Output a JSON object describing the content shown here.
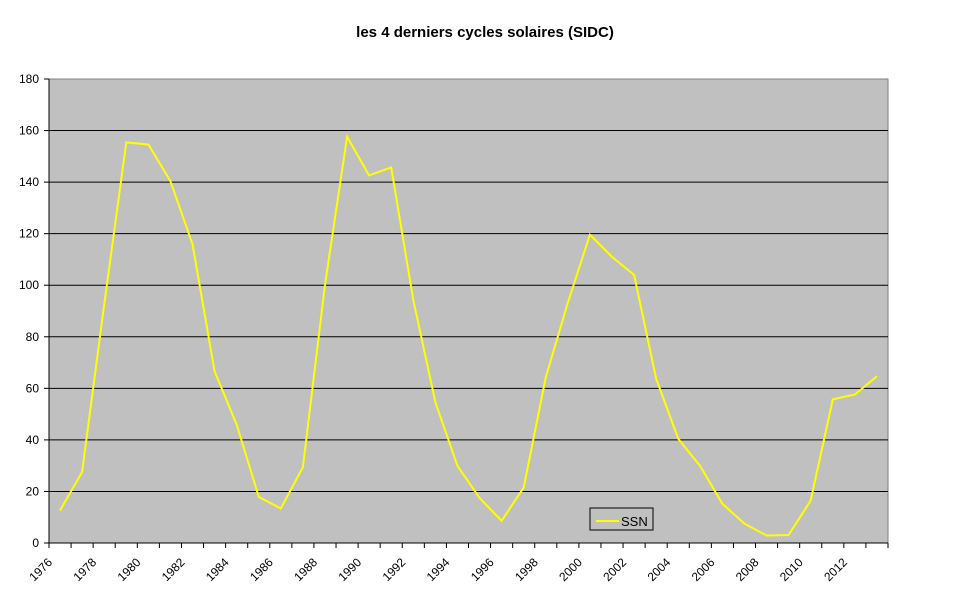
{
  "chart_data": {
    "type": "line",
    "title": "les 4 derniers cycles solaires (SIDC)",
    "xlabel": "",
    "ylabel": "",
    "ylim": [
      0,
      180
    ],
    "yticks": [
      0,
      20,
      40,
      60,
      80,
      100,
      120,
      140,
      160,
      180
    ],
    "grid": true,
    "legend": "bottom-center",
    "x": [
      1976,
      1977,
      1978,
      1979,
      1980,
      1981,
      1982,
      1983,
      1984,
      1985,
      1986,
      1987,
      1988,
      1989,
      1990,
      1991,
      1992,
      1993,
      1994,
      1995,
      1996,
      1997,
      1998,
      1999,
      2000,
      2001,
      2002,
      2003,
      2004,
      2005,
      2006,
      2007,
      2008,
      2009,
      2010,
      2011,
      2012,
      2013
    ],
    "xtick_labels": [
      "1976",
      "1978",
      "1980",
      "1982",
      "1984",
      "1986",
      "1988",
      "1990",
      "1992",
      "1994",
      "1996",
      "1998",
      "2000",
      "2002",
      "2004",
      "2006",
      "2008",
      "2010",
      "2012"
    ],
    "series": [
      {
        "name": "SSN",
        "color": "#ffff00",
        "values": [
          12.6,
          27.5,
          92.5,
          155.4,
          154.6,
          140.4,
          115.9,
          66.6,
          45.9,
          17.9,
          13.4,
          29.4,
          100.2,
          157.6,
          142.6,
          145.7,
          94.3,
          54.6,
          29.9,
          17.5,
          8.6,
          21.5,
          64.3,
          93.3,
          119.6,
          111.0,
          104.0,
          63.7,
          40.4,
          29.8,
          15.2,
          7.5,
          2.9,
          3.1,
          16.5,
          55.7,
          57.6,
          64.7
        ]
      }
    ],
    "plot_background": "#c0c0c0"
  }
}
